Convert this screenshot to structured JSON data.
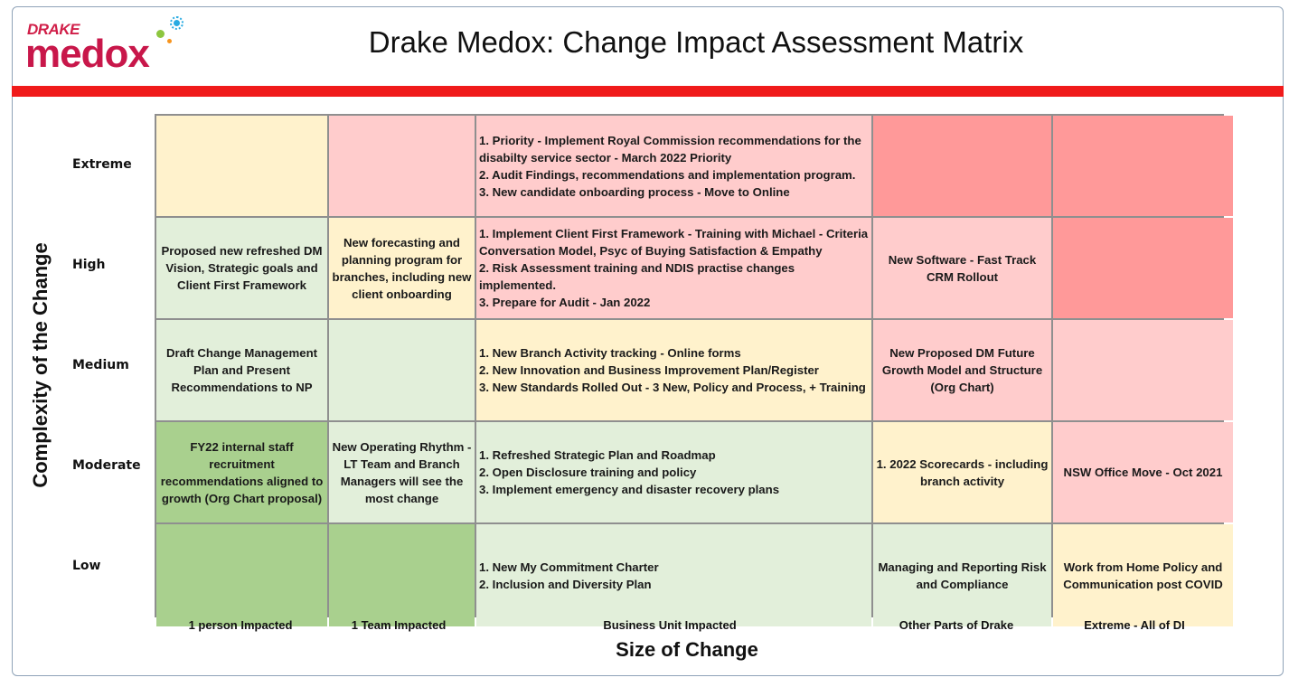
{
  "header": {
    "logo_top": "DRAKE",
    "logo_main": "medox",
    "title": "Drake Medox: Change Impact Assessment Matrix"
  },
  "colors": {
    "brand_red": "#f01b1b",
    "logo_pink": "#c8174a",
    "cell_yellow": "#fff2cc",
    "cell_pink": "#ffcccc",
    "cell_red": "#ff9999",
    "cell_light_green": "#e2efda",
    "cell_green": "#a9d08e"
  },
  "axes": {
    "y_label": "Complexity of the Change",
    "x_label": "Size of Change"
  },
  "rows": [
    {
      "label": "Extreme",
      "cells": [
        {
          "color": "yellow",
          "lines": []
        },
        {
          "color": "pink",
          "lines": []
        },
        {
          "color": "pink",
          "list": true,
          "lines": [
            "1. Priority - Implement Royal Commission recommendations for the disabilty service sector - March 2022 Priority",
            "2. Audit Findings, recommendations and implementation program.",
            "3. New candidate onboarding process - Move to Online"
          ]
        },
        {
          "color": "red",
          "lines": []
        },
        {
          "color": "red",
          "lines": []
        }
      ]
    },
    {
      "label": "High",
      "cells": [
        {
          "color": "lgreen",
          "lines": [
            "Proposed new refreshed DM Vision, Strategic goals and Client First Framework"
          ]
        },
        {
          "color": "yellow",
          "lines": [
            "New forecasting and planning program for branches, including new client onboarding"
          ]
        },
        {
          "color": "pink",
          "list": true,
          "lines": [
            "1. Implement Client First Framework - Training with Michael -  Criteria Conversation Model, Psyc of Buying Satisfaction & Empathy",
            "2. Risk Assessment training and NDIS practise changes implemented.",
            "3. Prepare for Audit - Jan 2022"
          ]
        },
        {
          "color": "pink",
          "lines": [
            "New Software - Fast Track CRM Rollout"
          ]
        },
        {
          "color": "red",
          "lines": []
        }
      ]
    },
    {
      "label": "Medium",
      "cells": [
        {
          "color": "lgreen",
          "lines": [
            "Draft Change Management Plan and Present Recommendations to NP"
          ]
        },
        {
          "color": "lgreen",
          "lines": []
        },
        {
          "color": "yellow",
          "list": true,
          "lines": [
            "1. New Branch Activity tracking  - Online forms",
            "2. New Innovation and Business Improvement Plan/Register",
            "3. New Standards Rolled Out  - 3 New, Policy and Process, + Training"
          ]
        },
        {
          "color": "pink",
          "lines": [
            "New Proposed DM Future Growth Model and Structure (Org Chart)"
          ]
        },
        {
          "color": "pink",
          "lines": []
        }
      ]
    },
    {
      "label": "Moderate",
      "cells": [
        {
          "color": "green",
          "lines": [
            "FY22 internal staff recruitment recommendations aligned to growth (Org Chart proposal)"
          ]
        },
        {
          "color": "lgreen",
          "lines": [
            "New Operating Rhythm - LT Team and Branch Managers will see the most change"
          ]
        },
        {
          "color": "lgreen",
          "list": true,
          "lines": [
            "1. Refreshed Strategic Plan and Roadmap",
            "2. Open Disclosure training and policy",
            "3. Implement emergency and disaster recovery plans"
          ]
        },
        {
          "color": "yellow",
          "lines": [
            "1. 2022 Scorecards - including branch activity"
          ]
        },
        {
          "color": "pink",
          "lines": [
            "NSW Office Move - Oct 2021"
          ]
        }
      ]
    },
    {
      "label": "Low",
      "cells": [
        {
          "color": "green",
          "lines": []
        },
        {
          "color": "green",
          "lines": []
        },
        {
          "color": "lgreen",
          "list": true,
          "lines": [
            "1. New My Commitment Charter",
            "2. Inclusion and Diversity Plan"
          ]
        },
        {
          "color": "lgreen",
          "lines": [
            "Managing and Reporting Risk and Compliance"
          ]
        },
        {
          "color": "yellow",
          "lines": [
            "Work from Home Policy and Communication post COVID"
          ]
        }
      ]
    }
  ],
  "columns": [
    "1 person Impacted",
    "1 Team Impacted",
    "Business Unit Impacted",
    "Other Parts of Drake",
    "Extreme - All of DI"
  ]
}
